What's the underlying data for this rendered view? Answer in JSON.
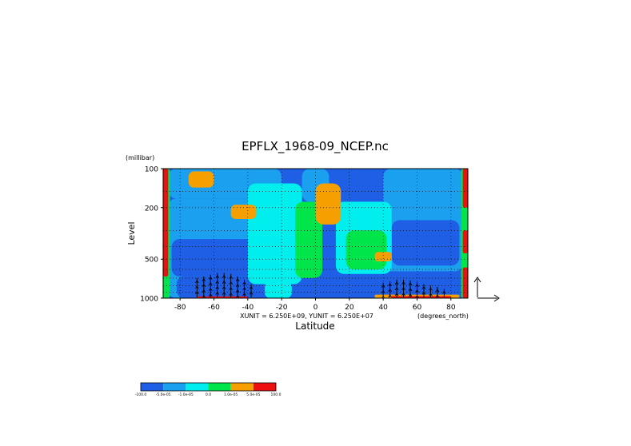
{
  "chart_data": {
    "type": "heatmap",
    "title": "EPFLX_1968-09_NCEP.nc",
    "ylabel": "Level",
    "yunits": "(millibar)",
    "xlabel": "Latitude",
    "xunits": "(degrees_north)",
    "scale_note": "XUNIT = 6.250E+09, YUNIT = 6.250E+07",
    "x_range": [
      -90,
      90
    ],
    "y_range": [
      100,
      1000
    ],
    "y_scale": "log",
    "x_ticks": [
      -80,
      -60,
      -40,
      -20,
      0,
      20,
      40,
      60,
      80
    ],
    "x_tick_labels": [
      "-80",
      "-60",
      "-40",
      "-20",
      "0",
      "20",
      "40",
      "60",
      "80"
    ],
    "y_ticks": [
      100,
      200,
      500,
      1000
    ],
    "y_tick_labels": [
      "100",
      "200",
      "500",
      "1000"
    ],
    "grid": "dotted",
    "colorbar": {
      "placement": "bottom-left",
      "colors": [
        "#1e5fe6",
        "#1aa0ee",
        "#00eeee",
        "#00e64a",
        "#f5a000",
        "#ee1010"
      ],
      "labels": [
        "-100.0",
        "-5.0e-05",
        "-1.0e-05",
        "0.0",
        "1.0e-05",
        "5.0e-05",
        "100.0"
      ]
    },
    "vector_key": "reference arrows (right of plot)",
    "regions": [
      {
        "level": 0,
        "lat": [
          -90,
          90
        ],
        "p": [
          100,
          1000
        ]
      },
      {
        "level": 1,
        "lat": [
          -87,
          -20
        ],
        "p": [
          100,
          170
        ]
      },
      {
        "level": 1,
        "lat": [
          -87,
          -30
        ],
        "p": [
          170,
          1000
        ]
      },
      {
        "level": 1,
        "lat": [
          40,
          87
        ],
        "p": [
          100,
          620
        ]
      },
      {
        "level": 1,
        "lat": [
          -8,
          8
        ],
        "p": [
          100,
          180
        ]
      },
      {
        "level": 0,
        "lat": [
          -85,
          -25
        ],
        "p": [
          350,
          680
        ]
      },
      {
        "level": 0,
        "lat": [
          45,
          85
        ],
        "p": [
          250,
          560
        ]
      },
      {
        "level": 0,
        "lat": [
          -82,
          -30
        ],
        "p": [
          680,
          1000
        ]
      },
      {
        "level": 2,
        "lat": [
          -40,
          -8
        ],
        "p": [
          130,
          780
        ]
      },
      {
        "level": 2,
        "lat": [
          12,
          45
        ],
        "p": [
          180,
          650
        ]
      },
      {
        "level": 2,
        "lat": [
          -30,
          -14
        ],
        "p": [
          750,
          1000
        ]
      },
      {
        "level": 3,
        "lat": [
          -12,
          4
        ],
        "p": [
          180,
          700
        ]
      },
      {
        "level": 3,
        "lat": [
          18,
          42
        ],
        "p": [
          300,
          600
        ]
      },
      {
        "level": 3,
        "lat": [
          -90,
          -86
        ],
        "p": [
          100,
          1000
        ]
      },
      {
        "level": 3,
        "lat": [
          86,
          90
        ],
        "p": [
          100,
          1000
        ]
      },
      {
        "level": 4,
        "lat": [
          -75,
          -60
        ],
        "p": [
          105,
          140
        ]
      },
      {
        "level": 4,
        "lat": [
          -50,
          -35
        ],
        "p": [
          190,
          245
        ]
      },
      {
        "level": 4,
        "lat": [
          0,
          15
        ],
        "p": [
          130,
          270
        ]
      },
      {
        "level": 4,
        "lat": [
          35,
          45
        ],
        "p": [
          440,
          520
        ]
      },
      {
        "level": 4,
        "lat": [
          35,
          85
        ],
        "p": [
          940,
          1000
        ]
      },
      {
        "level": 5,
        "lat": [
          -90,
          -87
        ],
        "p": [
          100,
          680
        ]
      },
      {
        "level": 5,
        "lat": [
          87,
          90
        ],
        "p": [
          100,
          200
        ]
      },
      {
        "level": 5,
        "lat": [
          87,
          90
        ],
        "p": [
          300,
          450
        ]
      },
      {
        "level": 5,
        "lat": [
          87,
          90
        ],
        "p": [
          580,
          1000
        ]
      },
      {
        "level": 5,
        "lat": [
          45,
          80
        ],
        "p": [
          965,
          1000
        ]
      },
      {
        "level": 5,
        "lat": [
          -70,
          -40
        ],
        "p": [
          970,
          1000
        ]
      }
    ],
    "vector_columns": [
      {
        "lat": -70,
        "p_top": 700,
        "dir": "up"
      },
      {
        "lat": -66,
        "p_top": 680,
        "dir": "up"
      },
      {
        "lat": -62,
        "p_top": 660,
        "dir": "up"
      },
      {
        "lat": -58,
        "p_top": 640,
        "dir": "up"
      },
      {
        "lat": -54,
        "p_top": 640,
        "dir": "up"
      },
      {
        "lat": -50,
        "p_top": 650,
        "dir": "up"
      },
      {
        "lat": -46,
        "p_top": 680,
        "dir": "up"
      },
      {
        "lat": -42,
        "p_top": 720,
        "dir": "up"
      },
      {
        "lat": -38,
        "p_top": 780,
        "dir": "up"
      },
      {
        "lat": 40,
        "p_top": 760,
        "dir": "up"
      },
      {
        "lat": 44,
        "p_top": 740,
        "dir": "up"
      },
      {
        "lat": 48,
        "p_top": 720,
        "dir": "up"
      },
      {
        "lat": 52,
        "p_top": 720,
        "dir": "up"
      },
      {
        "lat": 56,
        "p_top": 730,
        "dir": "up"
      },
      {
        "lat": 60,
        "p_top": 750,
        "dir": "up"
      },
      {
        "lat": 64,
        "p_top": 780,
        "dir": "up"
      },
      {
        "lat": 68,
        "p_top": 800,
        "dir": "up"
      },
      {
        "lat": 72,
        "p_top": 820,
        "dir": "up"
      },
      {
        "lat": 76,
        "p_top": 850,
        "dir": "up"
      }
    ]
  }
}
